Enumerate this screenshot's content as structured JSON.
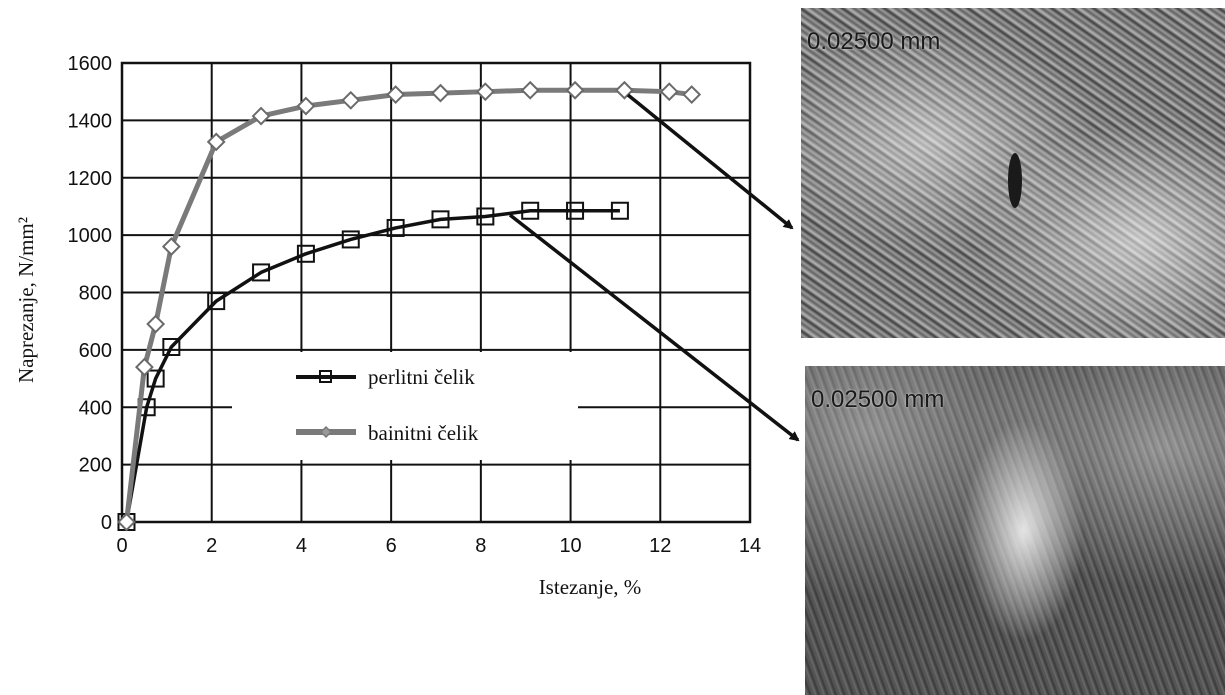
{
  "chart_data": {
    "type": "line",
    "xlabel": "Istezanje, %",
    "ylabel": "Naprezanje, N/mm²",
    "xlim": [
      0,
      14
    ],
    "ylim": [
      0,
      1600
    ],
    "xticks": [
      0,
      2,
      4,
      6,
      8,
      10,
      12,
      14
    ],
    "yticks": [
      0,
      200,
      400,
      600,
      800,
      1000,
      1200,
      1400,
      1600
    ],
    "grid": true,
    "legend_position": "center-left",
    "series": [
      {
        "name": "perlitni čelik",
        "color": "#111111",
        "marker": "square",
        "x": [
          0.1,
          0.55,
          0.75,
          1.1,
          2.1,
          3.1,
          4.1,
          5.1,
          6.1,
          7.1,
          8.1,
          9.1,
          10.1,
          11.1
        ],
        "y": [
          0,
          400,
          500,
          610,
          770,
          870,
          935,
          985,
          1025,
          1055,
          1065,
          1085,
          1085,
          1085
        ]
      },
      {
        "name": "bainitni čelik",
        "color": "#7a7a7a",
        "marker": "diamond",
        "x": [
          0.1,
          0.5,
          0.75,
          1.1,
          2.1,
          3.1,
          4.1,
          5.1,
          6.1,
          7.1,
          8.1,
          9.1,
          10.1,
          11.2,
          12.2,
          12.7
        ],
        "y": [
          0,
          540,
          690,
          960,
          1325,
          1415,
          1450,
          1470,
          1490,
          1495,
          1500,
          1505,
          1505,
          1505,
          1500,
          1490
        ]
      }
    ]
  },
  "micrographs": [
    {
      "scale_label": "0.02500 mm"
    },
    {
      "scale_label": "0.02500 mm"
    }
  ]
}
